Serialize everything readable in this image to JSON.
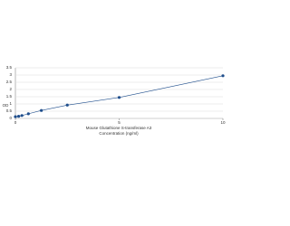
{
  "chart_data": {
    "type": "scatter-line",
    "ylabel": "OD",
    "xlabel": [
      "Mouse Glutathione S-transferase A3",
      "Concentration (ng/ml)"
    ],
    "x": [
      0,
      0.156,
      0.313,
      0.625,
      1.25,
      2.5,
      5,
      10
    ],
    "series": [
      {
        "color": "#1f4e8c",
        "values": [
          0.12,
          0.15,
          0.2,
          0.32,
          0.55,
          0.92,
          1.45,
          2.95
        ]
      }
    ],
    "xlim": [
      0,
      10
    ],
    "xticks": [
      0,
      5,
      10
    ],
    "ylim": [
      0,
      3.5
    ],
    "yticks": [
      0,
      0.5,
      1,
      1.5,
      2,
      2.5,
      3,
      3.5
    ],
    "grid": true
  }
}
